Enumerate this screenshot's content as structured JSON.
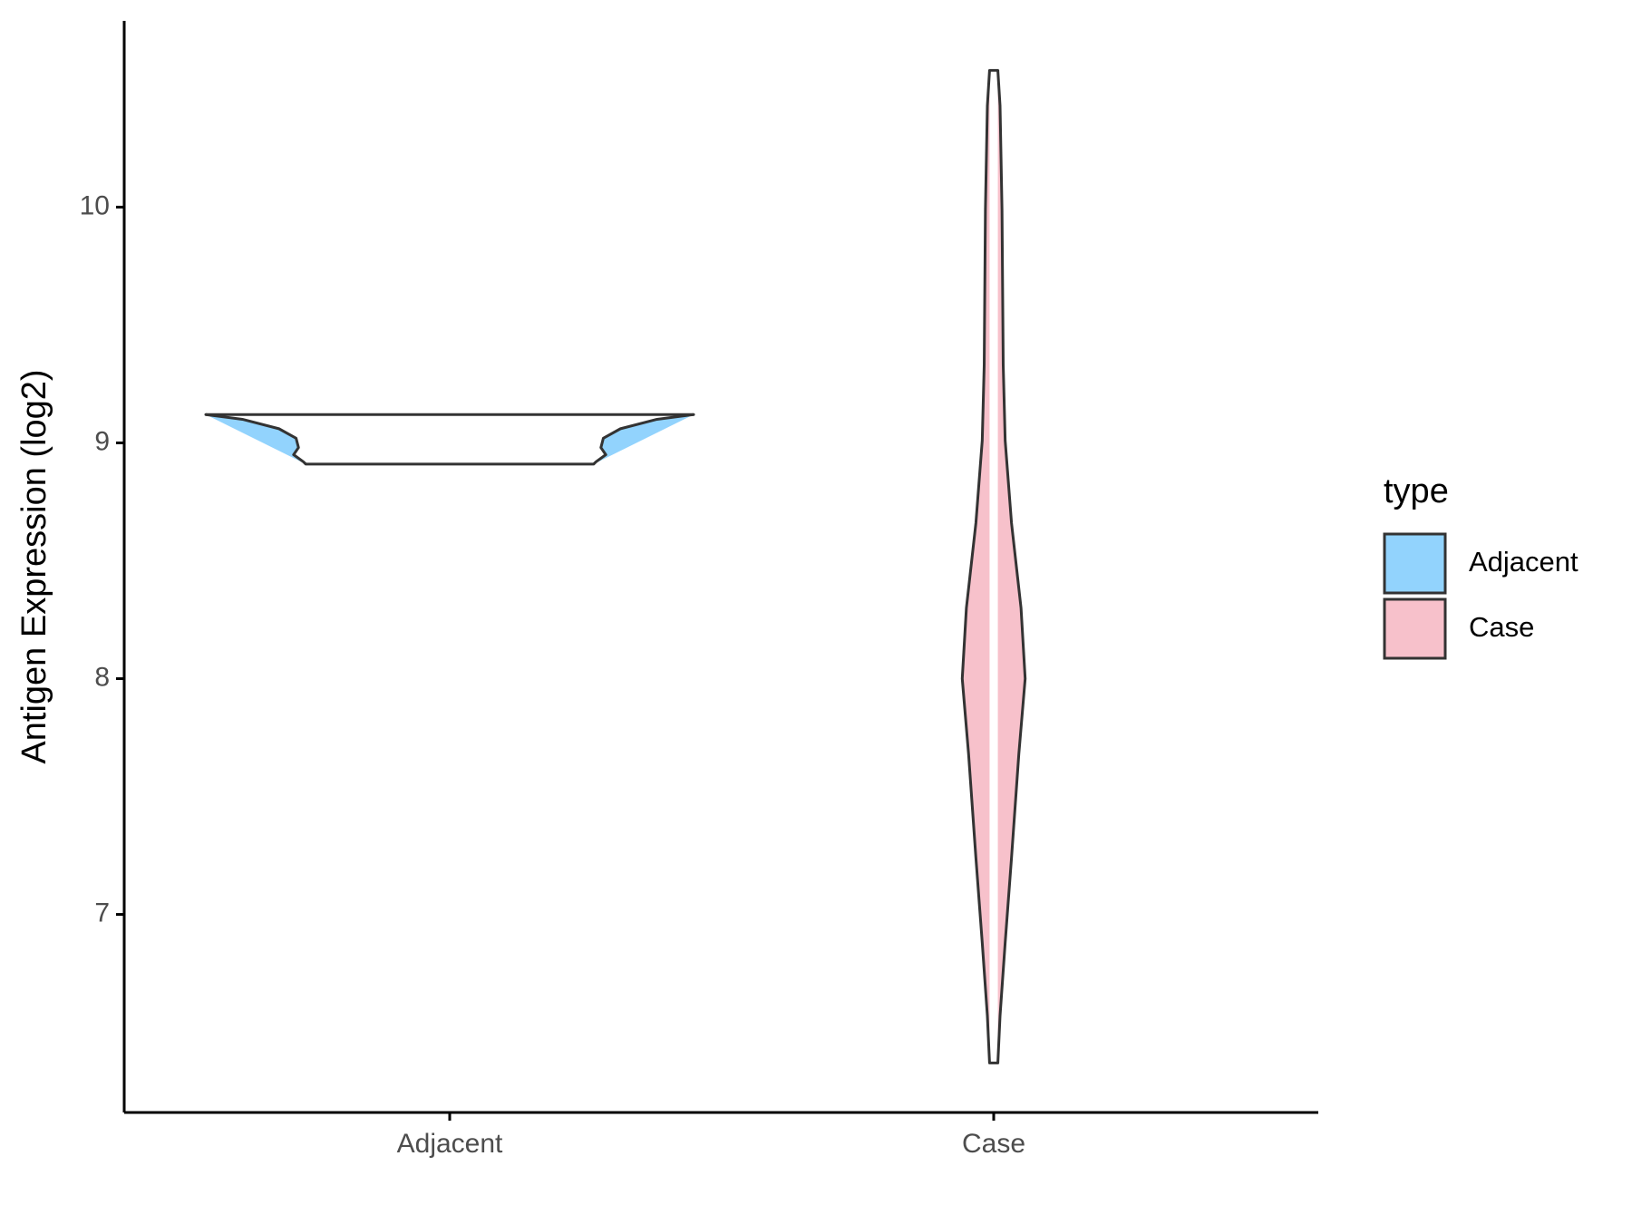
{
  "chart_data": {
    "type": "violin",
    "y_label": "Antigen Expression (log2)",
    "categories": [
      "Adjacent",
      "Case"
    ],
    "ylim": [
      6.16,
      10.79
    ],
    "yticks": [
      7,
      8,
      9,
      10
    ],
    "legend_title": "type",
    "legend_position": "right",
    "series": [
      {
        "name": "Adjacent",
        "color": "#92d3fd",
        "y": [
          9.12,
          9.1,
          9.06,
          9.02,
          8.98,
          8.95,
          8.92,
          8.91
        ],
        "density": [
          1.0,
          0.85,
          0.7,
          0.63,
          0.62,
          0.64,
          0.6,
          0.59
        ]
      },
      {
        "name": "Case",
        "color": "#f7c1cb",
        "y": [
          10.58,
          10.43,
          9.99,
          9.33,
          9.01,
          8.66,
          8.3,
          8.0,
          7.68,
          7.24,
          6.88,
          6.57,
          6.37
        ],
        "density": [
          0.017,
          0.026,
          0.034,
          0.039,
          0.047,
          0.073,
          0.112,
          0.129,
          0.103,
          0.073,
          0.047,
          0.026,
          0.017
        ]
      }
    ]
  }
}
